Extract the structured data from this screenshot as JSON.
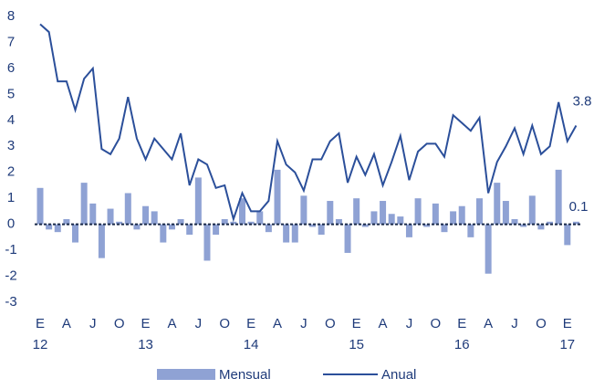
{
  "chart_data": {
    "type": "bar-line",
    "categories": [
      "E",
      null,
      null,
      "A",
      null,
      null,
      "J",
      null,
      null,
      "O",
      null,
      null,
      "E",
      null,
      null,
      "A",
      null,
      null,
      "J",
      null,
      null,
      "O",
      null,
      null,
      "E",
      null,
      null,
      "A",
      null,
      null,
      "J",
      null,
      null,
      "O",
      null,
      null,
      "E",
      null,
      null,
      "A",
      null,
      null,
      "J",
      null,
      null,
      "O",
      null,
      null,
      "E",
      null,
      null,
      "A",
      null,
      null,
      "J",
      null,
      null,
      "O",
      null,
      null,
      "E",
      null
    ],
    "year_labels": [
      "12",
      null,
      null,
      null,
      null,
      null,
      null,
      null,
      null,
      null,
      null,
      null,
      "13",
      null,
      null,
      null,
      null,
      null,
      null,
      null,
      null,
      null,
      null,
      null,
      "14",
      null,
      null,
      null,
      null,
      null,
      null,
      null,
      null,
      null,
      null,
      null,
      "15",
      null,
      null,
      null,
      null,
      null,
      null,
      null,
      null,
      null,
      null,
      null,
      "16",
      null,
      null,
      null,
      null,
      null,
      null,
      null,
      null,
      null,
      null,
      null,
      "17",
      null
    ],
    "series": [
      {
        "name": "Mensual",
        "type": "bar",
        "color": "#8fa2d4",
        "values": [
          1.4,
          -0.2,
          -0.3,
          0.2,
          -0.7,
          1.6,
          0.8,
          -1.3,
          0.6,
          0.1,
          1.2,
          -0.2,
          0.7,
          0.5,
          -0.7,
          -0.2,
          0.2,
          -0.4,
          1.8,
          -1.4,
          -0.4,
          0.2,
          0.1,
          1.0,
          0.1,
          0.5,
          -0.3,
          2.1,
          -0.7,
          -0.7,
          1.1,
          -0.1,
          -0.4,
          0.9,
          0.2,
          -1.1,
          1.0,
          -0.1,
          0.5,
          0.9,
          0.4,
          0.3,
          -0.5,
          1.0,
          -0.1,
          0.8,
          -0.3,
          0.5,
          0.7,
          -0.5,
          1.0,
          -1.9,
          1.6,
          0.9,
          0.2,
          -0.1,
          1.1,
          -0.2,
          0.1,
          2.1,
          -0.8,
          0.1
        ]
      },
      {
        "name": "Anual",
        "type": "line",
        "color": "#2b4f9a",
        "values": [
          7.7,
          7.4,
          5.5,
          5.5,
          4.4,
          5.6,
          6.0,
          2.9,
          2.7,
          3.3,
          4.9,
          3.3,
          2.5,
          3.3,
          2.9,
          2.5,
          3.5,
          1.5,
          2.5,
          2.3,
          1.4,
          1.5,
          0.2,
          1.2,
          0.5,
          0.5,
          0.9,
          3.2,
          2.3,
          2.0,
          1.3,
          2.5,
          2.5,
          3.2,
          3.5,
          1.6,
          2.6,
          1.9,
          2.7,
          1.5,
          2.4,
          3.4,
          1.7,
          2.8,
          3.1,
          3.1,
          2.6,
          4.2,
          3.9,
          3.6,
          4.1,
          1.2,
          2.4,
          3.0,
          3.7,
          2.7,
          3.8,
          2.7,
          3.0,
          4.7,
          3.2,
          3.8
        ]
      }
    ],
    "ylim": [
      -3,
      8
    ],
    "yticks": [
      -3,
      -2,
      -1,
      0,
      1,
      2,
      3,
      4,
      5,
      6,
      7,
      8
    ],
    "legend": "bottom"
  }
}
